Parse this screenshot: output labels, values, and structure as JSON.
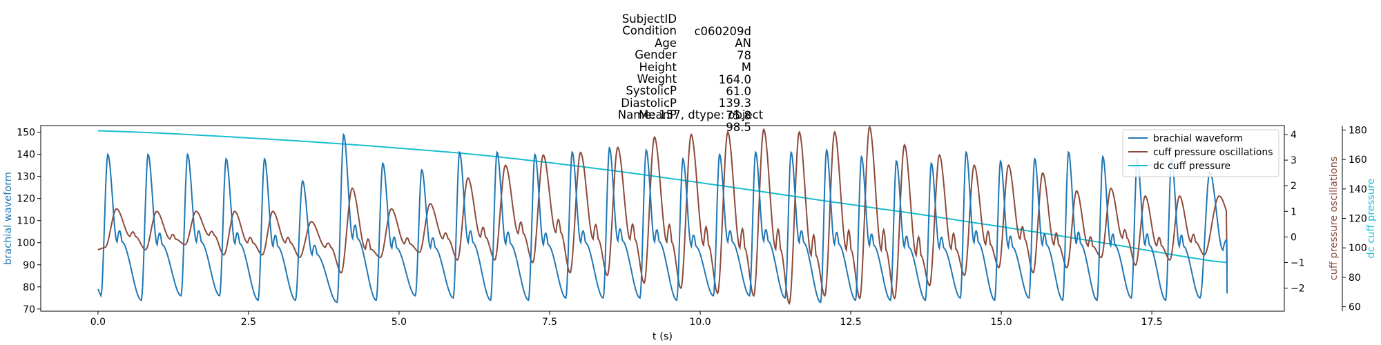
{
  "title": {
    "rows": [
      {
        "key": "SubjectID",
        "value": "c060209d"
      },
      {
        "key": "Condition",
        "value": "AN"
      },
      {
        "key": "Age",
        "value": "78"
      },
      {
        "key": "Gender",
        "value": "M"
      },
      {
        "key": "Height",
        "value": "164.0"
      },
      {
        "key": "Weight",
        "value": "61.0"
      },
      {
        "key": "SystolicP",
        "value": "139.3"
      },
      {
        "key": "DiastolicP",
        "value": "75.8"
      },
      {
        "key": "MeanP",
        "value": "98.5"
      }
    ],
    "footer": "Name: 157, dtype: object"
  },
  "colors": {
    "brachial": "#1f77b4",
    "cuff_osc": "#8c4a3c",
    "dc_cuff": "#17becf"
  },
  "chart_data": {
    "type": "line",
    "xlabel": "t (s)",
    "xlim": [
      -0.95,
      19.7
    ],
    "xticks": [
      "0.0",
      "2.5",
      "5.0",
      "7.5",
      "10.0",
      "12.5",
      "15.0",
      "17.5"
    ],
    "legend_placement": "top-right",
    "grid": false,
    "axes": [
      {
        "id": "left",
        "label": "brachial waveform",
        "ylim": [
          69,
          153
        ],
        "ticks": [
          70,
          80,
          90,
          100,
          110,
          120,
          130,
          140,
          150
        ]
      },
      {
        "id": "right1",
        "label": "cuff pressure oscillations",
        "ylim": [
          -2.9,
          4.35
        ],
        "ticks": [
          "−2",
          "−1",
          "0",
          "1",
          "2",
          "3",
          "4"
        ]
      },
      {
        "id": "right2",
        "label": "dc cuff pressure",
        "ylim": [
          57,
          183
        ],
        "ticks": [
          60,
          80,
          100,
          120,
          140,
          160,
          180
        ]
      }
    ],
    "series": [
      {
        "name": "brachial waveform",
        "axis": "left",
        "model": "beat_waveform",
        "t_end": 18.75,
        "beat_times": [
          0.05,
          0.72,
          1.38,
          2.02,
          2.66,
          3.28,
          3.97,
          4.62,
          5.27,
          5.9,
          6.52,
          7.15,
          7.77,
          8.39,
          9.0,
          9.61,
          10.22,
          10.82,
          11.41,
          12.0,
          12.58,
          13.16,
          13.74,
          14.32,
          14.89,
          15.46,
          16.02,
          16.59,
          17.16,
          17.73,
          18.3
        ],
        "peaks": [
          140,
          140,
          140,
          138,
          138,
          128,
          149,
          136,
          133,
          141,
          141,
          140,
          141,
          143,
          142,
          138,
          140,
          141,
          141,
          142,
          139,
          137,
          136,
          141,
          137,
          138,
          141,
          139,
          138,
          138,
          132
        ],
        "troughs": [
          76,
          74,
          76,
          76,
          74,
          74,
          73,
          74,
          76,
          75,
          74,
          74,
          75,
          75,
          75,
          74,
          76,
          76,
          75,
          73,
          74,
          74,
          74,
          75,
          74,
          75,
          74,
          74,
          75,
          74,
          75
        ],
        "start_value": 79,
        "end_value": 77
      },
      {
        "name": "cuff pressure oscillations",
        "axis": "right1",
        "model": "beat_oscillation",
        "t_end": 18.75,
        "beat_times": [
          0.12,
          0.79,
          1.45,
          2.09,
          2.73,
          3.35,
          4.04,
          4.69,
          5.34,
          5.97,
          6.59,
          7.22,
          7.84,
          8.46,
          9.07,
          9.68,
          10.29,
          10.89,
          11.48,
          12.07,
          12.65,
          13.23,
          13.81,
          14.39,
          14.96,
          15.53,
          16.09,
          16.66,
          17.23,
          17.8,
          18.37
        ],
        "peak_amplitude": [
          1.1,
          1.0,
          1.0,
          1.0,
          1.0,
          0.6,
          1.9,
          1.1,
          1.3,
          2.3,
          2.8,
          3.2,
          3.3,
          3.5,
          3.9,
          4.0,
          4.1,
          4.2,
          4.1,
          4.1,
          4.3,
          3.6,
          3.2,
          2.8,
          2.8,
          2.5,
          1.8,
          1.9,
          1.6,
          1.6,
          1.6
        ],
        "trough_amplitude": [
          -0.4,
          -0.5,
          -0.3,
          -0.7,
          -0.7,
          -0.8,
          -1.4,
          -0.8,
          -0.6,
          -0.9,
          -0.9,
          -1.0,
          -1.4,
          -1.5,
          -1.8,
          -2.0,
          -2.2,
          -2.3,
          -2.6,
          -2.3,
          -2.4,
          -2.4,
          -1.9,
          -1.5,
          -1.2,
          -1.4,
          -1.2,
          -0.8,
          -1.1,
          -0.9,
          -0.7
        ],
        "start_value": -0.5,
        "end_value": -1.3
      },
      {
        "name": "dc cuff pressure",
        "axis": "right2",
        "model": "decay",
        "x": [
          0.0,
          0.5,
          1.0,
          1.5,
          2.0,
          2.5,
          3.0,
          3.5,
          4.0,
          4.5,
          5.0,
          5.5,
          6.0,
          6.5,
          7.0,
          7.5,
          8.0,
          8.5,
          9.0,
          9.5,
          10.0,
          10.5,
          11.0,
          11.5,
          12.0,
          12.5,
          13.0,
          13.5,
          14.0,
          14.5,
          15.0,
          15.5,
          16.0,
          16.5,
          17.0,
          17.5,
          18.0,
          18.5,
          18.75
        ],
        "y": [
          179.5,
          178.8,
          178.0,
          176.9,
          175.8,
          174.6,
          173.4,
          172.1,
          170.7,
          169.3,
          167.7,
          166.1,
          164.4,
          162.4,
          160.2,
          157.8,
          155.3,
          152.7,
          150.0,
          147.1,
          144.2,
          141.3,
          138.3,
          135.3,
          132.3,
          129.4,
          126.4,
          123.6,
          120.5,
          117.4,
          114.4,
          111.2,
          108.0,
          104.7,
          101.3,
          97.8,
          94.3,
          91.1,
          90.0
        ]
      }
    ]
  }
}
